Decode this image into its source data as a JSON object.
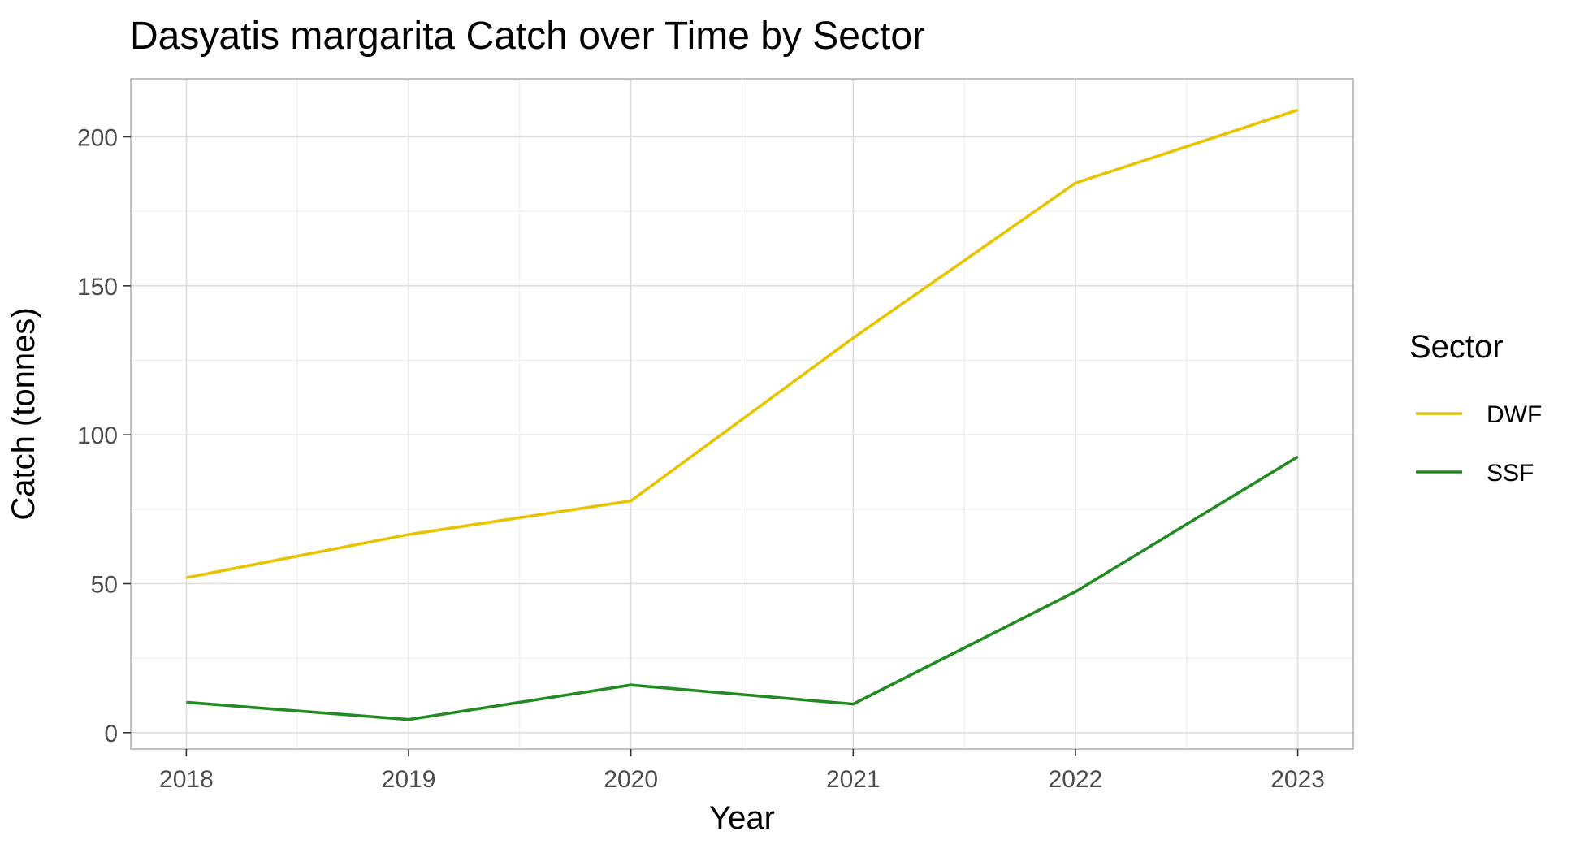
{
  "chart_data": {
    "type": "line",
    "title": "Dasyatis margarita Catch over Time by Sector",
    "xlabel": "Year",
    "ylabel": "Catch (tonnes)",
    "x": [
      2018,
      2019,
      2020,
      2021,
      2022,
      2023
    ],
    "x_tick_labels": [
      "2018",
      "2019",
      "2020",
      "2021",
      "2022",
      "2023"
    ],
    "y_ticks": [
      0,
      50,
      100,
      150,
      200
    ],
    "y_tick_labels": [
      "0",
      "50",
      "100",
      "150",
      "200"
    ],
    "xlim": [
      2017.75,
      2023.25
    ],
    "ylim": [
      -5.5,
      219.5
    ],
    "grid": true,
    "legend": {
      "title": "Sector",
      "placement": "right"
    },
    "series": [
      {
        "name": "DWF",
        "color": "#e8c300",
        "values": [
          52.0,
          66.5,
          77.8,
          132.5,
          184.5,
          209.0
        ]
      },
      {
        "name": "SSF",
        "color": "#228b22",
        "values": [
          10.2,
          4.4,
          16.0,
          9.6,
          47.3,
          92.6
        ]
      }
    ]
  }
}
